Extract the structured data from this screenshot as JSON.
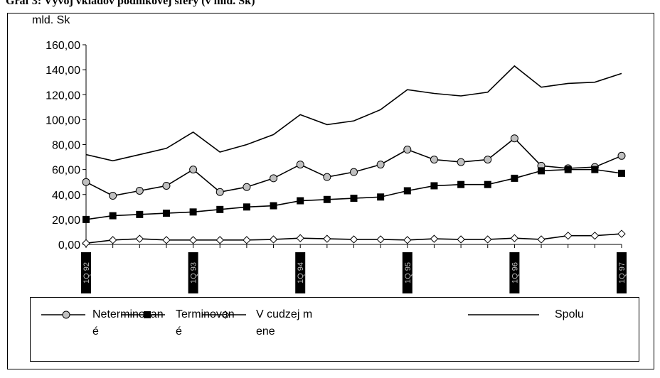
{
  "chart_data": {
    "type": "line",
    "title": "Graf 3: Vývoj vkladov podnikovej sféry (v mld. Sk)",
    "y_label": "mld. Sk",
    "categories": [
      "1Q 92",
      null,
      null,
      null,
      "1Q 93",
      null,
      null,
      null,
      "1Q 94",
      null,
      null,
      null,
      "1Q 95",
      null,
      null,
      null,
      "1Q 96",
      null,
      null,
      null,
      "1Q 97"
    ],
    "ylim": [
      0,
      160
    ],
    "yticks": [
      {
        "value": 0,
        "label": "0,00"
      },
      {
        "value": 20,
        "label": "20,00"
      },
      {
        "value": 40,
        "label": "40,00"
      },
      {
        "value": 60,
        "label": "60,00"
      },
      {
        "value": 80,
        "label": "80,00"
      },
      {
        "value": 100,
        "label": "100,00"
      },
      {
        "value": 120,
        "label": "120,00"
      },
      {
        "value": 140,
        "label": "140,00"
      },
      {
        "value": 160,
        "label": "160,00"
      }
    ],
    "series": [
      {
        "name": "Neterminované",
        "color": "#000000",
        "marker": "circle",
        "marker_fill": "#c0c0c0",
        "values": [
          50,
          39,
          43,
          47,
          60,
          42,
          46,
          53,
          64,
          54,
          58,
          64,
          76,
          68,
          66,
          68,
          85,
          63,
          61,
          62,
          71
        ]
      },
      {
        "name": "Terminované",
        "color": "#000000",
        "marker": "square",
        "marker_fill": "#000000",
        "values": [
          20,
          23,
          24,
          25,
          26,
          28,
          30,
          31,
          35,
          36,
          37,
          38,
          43,
          47,
          48,
          48,
          53,
          59,
          60,
          60,
          57
        ]
      },
      {
        "name": "V cudzej mene",
        "color": "#000000",
        "marker": "diamond",
        "marker_fill": "#ffffff",
        "values": [
          1,
          3.5,
          4.5,
          3.5,
          3.5,
          3.5,
          3.5,
          4,
          5,
          4.5,
          4,
          4,
          3.5,
          4.5,
          4,
          4,
          5,
          4,
          7,
          7,
          8.5
        ]
      },
      {
        "name": "Spolu",
        "color": "#000000",
        "marker": "none",
        "marker_fill": "#000000",
        "values": [
          72,
          67,
          72,
          77,
          90,
          74,
          80,
          88,
          104,
          96,
          99,
          108,
          124,
          121,
          119,
          122,
          143,
          126,
          129,
          130,
          137
        ]
      }
    ],
    "grid": false
  }
}
